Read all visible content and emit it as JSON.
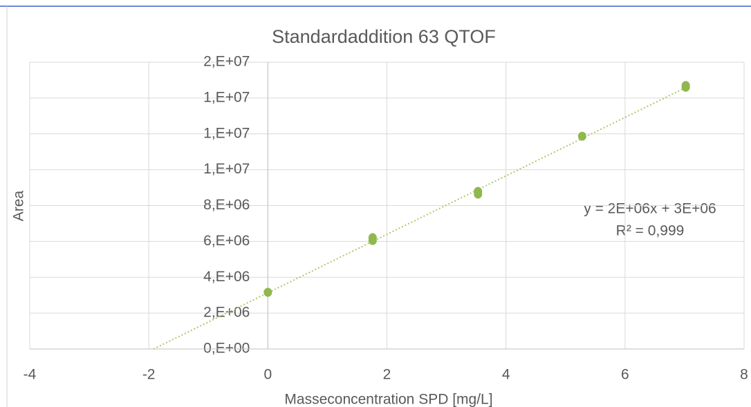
{
  "chart_data": {
    "type": "scatter",
    "title": "Standardaddition 63 QTOF",
    "x_label": "Masseconcentration SPD [mg/L]",
    "y_label": "Area",
    "xlim": [
      -4,
      8
    ],
    "xticks": [
      -4,
      -2,
      0,
      2,
      4,
      6,
      8
    ],
    "ylim": [
      0,
      16000000
    ],
    "yticks": [
      {
        "value": 0,
        "label": "0,E+00"
      },
      {
        "value": 2000000,
        "label": "2,E+06"
      },
      {
        "value": 4000000,
        "label": "4,E+06"
      },
      {
        "value": 6000000,
        "label": "6,E+06"
      },
      {
        "value": 8000000,
        "label": "8,E+06"
      },
      {
        "value": 10000000,
        "label": "1,E+07"
      },
      {
        "value": 12000000,
        "label": "1,E+07"
      },
      {
        "value": 14000000,
        "label": "1,E+07"
      },
      {
        "value": 16000000,
        "label": "2,E+07"
      }
    ],
    "grid": true,
    "series": [
      {
        "color": "#8fb84e",
        "x": [
          0,
          1.76,
          1.76,
          3.53,
          3.53,
          5.28,
          7.02,
          7.02
        ],
        "values": [
          3160000,
          6050000,
          6210000,
          8640000,
          8790000,
          11870000,
          14600000,
          14700000
        ]
      }
    ],
    "trendline": {
      "color": "#a9c96b",
      "x": [
        -1.92,
        7.06
      ],
      "values": [
        0,
        14650000
      ],
      "equation": "y = 2E+06x + 3E+06",
      "r2": "R² = 0,999"
    }
  }
}
